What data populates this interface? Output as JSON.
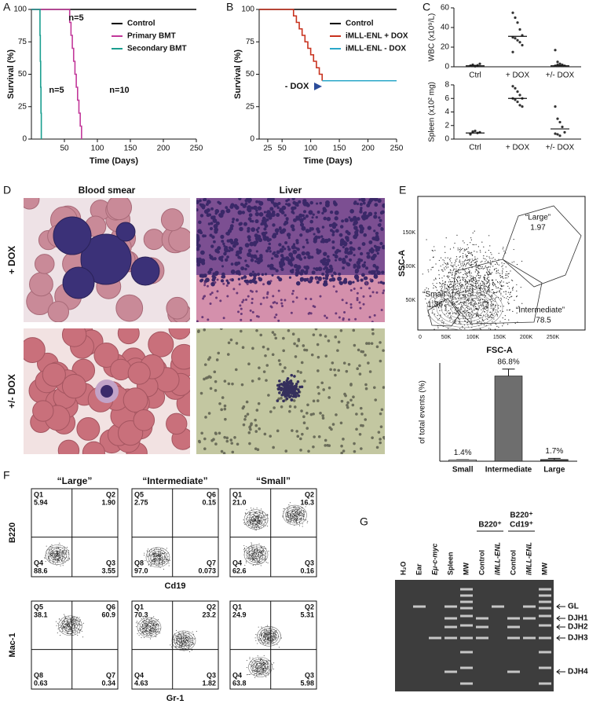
{
  "chart_data": [
    {
      "type": "step",
      "x_label": "Time (Days)",
      "y_label": "Survival (%)",
      "xlim": [
        0,
        250
      ],
      "ylim": [
        0,
        100
      ],
      "xticks": [
        50,
        100,
        150,
        200,
        250
      ],
      "yticks": [
        0,
        25,
        50,
        75,
        100
      ],
      "legend": "upper right",
      "series": [
        {
          "name": "Control",
          "color": "#000000",
          "x": [
            0,
            250
          ],
          "values": [
            100,
            100
          ]
        },
        {
          "name": "Primary BMT",
          "color": "#c2389a",
          "x": [
            0,
            58,
            60,
            62,
            64,
            66,
            68,
            70,
            72,
            74,
            76
          ],
          "values": [
            100,
            90,
            80,
            70,
            60,
            50,
            40,
            30,
            20,
            10,
            0
          ]
        },
        {
          "name": "Secondary BMT",
          "color": "#1a9e8f",
          "x": [
            0,
            13,
            13.5,
            14,
            14.5,
            15
          ],
          "values": [
            100,
            80,
            60,
            40,
            20,
            0
          ]
        }
      ],
      "annotations": [
        "n=5",
        "n=5",
        "n=10"
      ]
    },
    {
      "type": "step",
      "x_label": "Time (Days)",
      "y_label": "Survival (%)",
      "xlim": [
        10,
        250
      ],
      "ylim": [
        0,
        100
      ],
      "xticks": [
        25,
        50,
        100,
        150,
        200,
        250
      ],
      "yticks": [
        0,
        25,
        50,
        75,
        100
      ],
      "legend": "upper right",
      "series": [
        {
          "name": "Control",
          "color": "#000000",
          "x": [
            10,
            250
          ],
          "values": [
            100,
            100
          ]
        },
        {
          "name": "iMLL-ENL + DOX",
          "color": "#c8321e",
          "x": [
            10,
            70,
            75,
            80,
            85,
            90,
            95,
            100,
            105,
            110,
            115,
            120
          ],
          "values": [
            100,
            95,
            90,
            85,
            80,
            75,
            70,
            65,
            60,
            55,
            50,
            45
          ]
        },
        {
          "name": "iMLL-ENL - DOX",
          "color": "#2aa7c9",
          "x": [
            120,
            250
          ],
          "values": [
            45,
            45
          ]
        }
      ],
      "annotations": [
        "- DOX"
      ]
    },
    {
      "type": "dot",
      "y_label": "WBC (x10⁹/L)",
      "ylim": [
        0,
        60
      ],
      "yticks": [
        0,
        20,
        40,
        60
      ],
      "categories": [
        "Ctrl",
        "+ DOX",
        "+/- DOX"
      ],
      "points": [
        [
          1,
          2,
          0.5,
          1.5,
          3,
          1,
          2,
          0.8
        ],
        [
          55,
          50,
          45,
          38,
          32,
          30,
          29,
          27,
          25,
          22,
          15
        ],
        [
          17,
          5,
          3,
          2,
          1,
          1,
          2,
          1
        ]
      ],
      "medians": [
        1,
        31,
        1
      ]
    },
    {
      "type": "dot",
      "y_label": "Spleen (x10² mg)",
      "ylim": [
        0,
        8
      ],
      "yticks": [
        0,
        2,
        4,
        6,
        8
      ],
      "categories": [
        "Ctrl",
        "+ DOX",
        "+/- DOX"
      ],
      "points": [
        [
          0.8,
          1,
          1.2,
          0.9,
          1,
          0.7,
          1.1
        ],
        [
          7.8,
          7.5,
          7,
          6.5,
          6,
          6,
          5.8,
          5.5,
          5,
          4.8
        ],
        [
          4.8,
          3,
          2.5,
          1.8,
          1,
          0.8,
          0.7,
          0.5
        ]
      ],
      "medians": [
        0.9,
        6,
        1.5
      ]
    },
    {
      "type": "bar",
      "y_label": "of total events (%)",
      "ylim": [
        0,
        100
      ],
      "categories": [
        "Small",
        "Intermediate",
        "Large"
      ],
      "values": [
        1.4,
        86.8,
        1.7
      ],
      "errors": [
        0.1,
        7,
        1.2
      ],
      "value_labels": [
        "1.4%",
        "86.8%",
        "1.7%"
      ],
      "colors": [
        "#c8c8c8",
        "#6e6e6e",
        "#3c3c3c"
      ]
    }
  ],
  "panels": {
    "letters": [
      "A",
      "B",
      "C",
      "D",
      "E",
      "F",
      "G"
    ],
    "D": {
      "columns": [
        "Blood smear",
        "Liver"
      ],
      "rows": [
        "+ DOX",
        "+/- DOX"
      ]
    },
    "E": {
      "gates": [
        {
          "name": "“Large”",
          "value": "1.97"
        },
        {
          "name": "“Small”",
          "value": "1.36"
        },
        {
          "name": "“Intermediate”",
          "value": "78.5"
        }
      ],
      "x_label": "FSC-A",
      "y_label": "SSC-A",
      "xticks": [
        "0",
        "50K",
        "100K",
        "150K",
        "200K",
        "250K"
      ],
      "yticks": [
        "50K",
        "100K",
        "150K"
      ]
    },
    "F": {
      "columns": [
        "“Large”",
        "“Intermediate”",
        "“Small”"
      ],
      "rows": [
        {
          "y_label": "B220",
          "x_label": "Cd19",
          "plots": [
            [
              {
                "name": "Q1",
                "value": "5.94"
              },
              {
                "name": "Q2",
                "value": "1.90"
              },
              {
                "name": "Q4",
                "value": "88.6"
              },
              {
                "name": "Q3",
                "value": "3.55"
              }
            ],
            [
              {
                "name": "Q5",
                "value": "2.75"
              },
              {
                "name": "Q6",
                "value": "0.15"
              },
              {
                "name": "Q8",
                "value": "97.0"
              },
              {
                "name": "Q7",
                "value": "0.073"
              }
            ],
            [
              {
                "name": "Q1",
                "value": "21.0"
              },
              {
                "name": "Q2",
                "value": "16.3"
              },
              {
                "name": "Q4",
                "value": "62.6"
              },
              {
                "name": "Q3",
                "value": "0.16"
              }
            ]
          ]
        },
        {
          "y_label": "Mac-1",
          "x_label": "Gr-1",
          "plots": [
            [
              {
                "name": "Q5",
                "value": "38.1"
              },
              {
                "name": "Q6",
                "value": "60.9"
              },
              {
                "name": "Q8",
                "value": "0.63"
              },
              {
                "name": "Q7",
                "value": "0.34"
              }
            ],
            [
              {
                "name": "Q1",
                "value": "70.3"
              },
              {
                "name": "Q2",
                "value": "23.2"
              },
              {
                "name": "Q4",
                "value": "4.63"
              },
              {
                "name": "Q3",
                "value": "1.82"
              }
            ],
            [
              {
                "name": "Q1",
                "value": "24.9"
              },
              {
                "name": "Q2",
                "value": "5.31"
              },
              {
                "name": "Q4",
                "value": "63.8"
              },
              {
                "name": "Q3",
                "value": "5.98"
              }
            ]
          ]
        }
      ]
    },
    "G": {
      "lanes": [
        "H₂O",
        "Ear",
        "Eμ-c-myc",
        "Spleen",
        "MW",
        "Control",
        "iMLL-ENL",
        "Control",
        "iMLL-ENL",
        "MW"
      ],
      "groups": [
        [
          "B220⁺"
        ],
        [
          "B220⁺",
          "Cd19⁺"
        ]
      ],
      "bands": [
        "GL",
        "DJH1",
        "DJH2",
        "DJH3",
        "DJH4"
      ]
    }
  }
}
